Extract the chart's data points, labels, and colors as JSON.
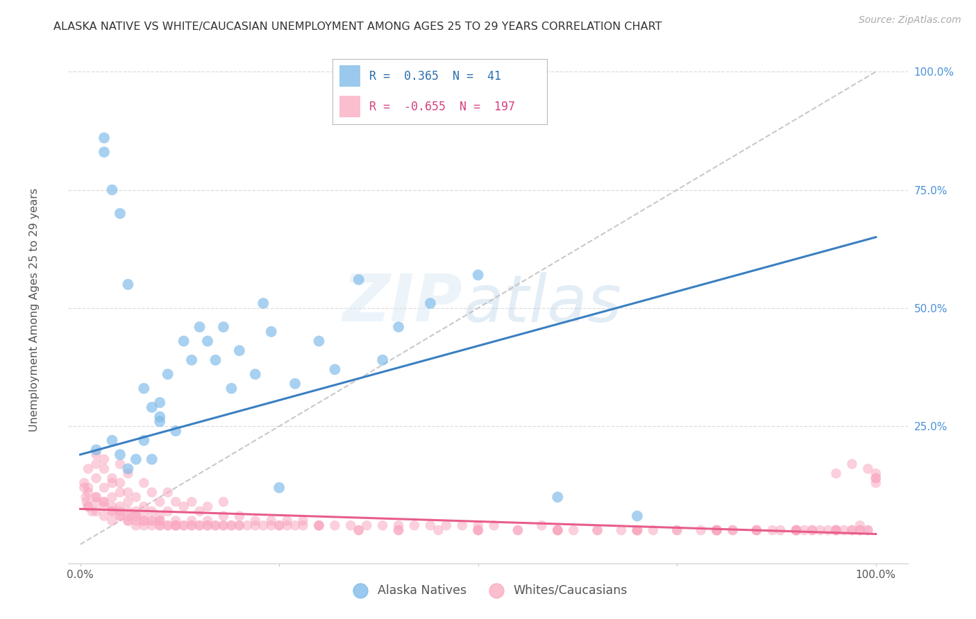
{
  "title": "ALASKA NATIVE VS WHITE/CAUCASIAN UNEMPLOYMENT AMONG AGES 25 TO 29 YEARS CORRELATION CHART",
  "source": "Source: ZipAtlas.com",
  "ylabel": "Unemployment Among Ages 25 to 29 years",
  "xlim": [
    0,
    1
  ],
  "ylim": [
    0,
    1
  ],
  "xticklabels": [
    "0.0%",
    "",
    "",
    "",
    "100.0%"
  ],
  "yticklabels": [
    "",
    "25.0%",
    "50.0%",
    "75.0%",
    "100.0%"
  ],
  "legend_r_blue": "0.365",
  "legend_n_blue": "41",
  "legend_r_pink": "-0.655",
  "legend_n_pink": "197",
  "blue_color": "#7ab8e8",
  "pink_color": "#f9a8c0",
  "blue_line_color": "#3a7fc1",
  "pink_line_color": "#e85c8a",
  "grid_color": "#dddddd",
  "watermark_zip": "ZIP",
  "watermark_atlas": "atlas",
  "alaska_x": [
    0.02,
    0.03,
    0.03,
    0.04,
    0.05,
    0.06,
    0.07,
    0.08,
    0.09,
    0.1,
    0.1,
    0.11,
    0.12,
    0.13,
    0.14,
    0.15,
    0.16,
    0.17,
    0.18,
    0.19,
    0.2,
    0.22,
    0.23,
    0.24,
    0.25,
    0.27,
    0.3,
    0.32,
    0.35,
    0.38,
    0.4,
    0.44,
    0.5,
    0.6,
    0.7,
    0.04,
    0.05,
    0.06,
    0.08,
    0.09,
    0.1
  ],
  "alaska_y": [
    0.2,
    0.86,
    0.83,
    0.75,
    0.7,
    0.55,
    0.18,
    0.33,
    0.29,
    0.3,
    0.27,
    0.36,
    0.24,
    0.43,
    0.39,
    0.46,
    0.43,
    0.39,
    0.46,
    0.33,
    0.41,
    0.36,
    0.51,
    0.45,
    0.12,
    0.34,
    0.43,
    0.37,
    0.56,
    0.39,
    0.46,
    0.51,
    0.57,
    0.1,
    0.06,
    0.22,
    0.19,
    0.16,
    0.22,
    0.18,
    0.26
  ],
  "whites_x": [
    0.005,
    0.007,
    0.01,
    0.01,
    0.01,
    0.02,
    0.02,
    0.02,
    0.02,
    0.03,
    0.03,
    0.03,
    0.03,
    0.04,
    0.04,
    0.04,
    0.04,
    0.05,
    0.05,
    0.05,
    0.05,
    0.06,
    0.06,
    0.06,
    0.06,
    0.07,
    0.07,
    0.07,
    0.08,
    0.08,
    0.08,
    0.09,
    0.09,
    0.1,
    0.1,
    0.1,
    0.11,
    0.11,
    0.12,
    0.12,
    0.13,
    0.13,
    0.14,
    0.14,
    0.15,
    0.15,
    0.16,
    0.16,
    0.17,
    0.18,
    0.18,
    0.19,
    0.2,
    0.21,
    0.22,
    0.23,
    0.24,
    0.25,
    0.26,
    0.27,
    0.28,
    0.3,
    0.32,
    0.34,
    0.36,
    0.38,
    0.4,
    0.42,
    0.44,
    0.46,
    0.48,
    0.5,
    0.52,
    0.55,
    0.58,
    0.6,
    0.62,
    0.65,
    0.68,
    0.7,
    0.72,
    0.75,
    0.78,
    0.8,
    0.82,
    0.85,
    0.87,
    0.9,
    0.92,
    0.95,
    0.97,
    0.98,
    0.99,
    1.0,
    0.02,
    0.03,
    0.04,
    0.05,
    0.06,
    0.07,
    0.08,
    0.09,
    0.1,
    0.11,
    0.12,
    0.005,
    0.008,
    0.01,
    0.015,
    0.02,
    0.03,
    0.04,
    0.05,
    0.06,
    0.07,
    0.08,
    0.09,
    0.1,
    0.11,
    0.12,
    0.13,
    0.14,
    0.15,
    0.16,
    0.17,
    0.18,
    0.19,
    0.2,
    0.22,
    0.24,
    0.26,
    0.28,
    0.3,
    0.35,
    0.4,
    0.45,
    0.5,
    0.55,
    0.6,
    0.65,
    0.7,
    0.75,
    0.8,
    0.85,
    0.9,
    0.95,
    1.0,
    0.01,
    0.02,
    0.03,
    0.04,
    0.05,
    0.06,
    0.07,
    0.08,
    0.09,
    0.1,
    0.12,
    0.14,
    0.16,
    0.18,
    0.2,
    0.25,
    0.3,
    0.35,
    0.4,
    0.5,
    0.6,
    0.7,
    0.8,
    0.9,
    0.95,
    0.98,
    0.99,
    1.0,
    0.5,
    0.6,
    0.7,
    0.8,
    0.9,
    0.95,
    0.97,
    0.99,
    1.0,
    0.98,
    0.97,
    0.96,
    0.95,
    0.94,
    0.93,
    0.92,
    0.91,
    0.9,
    0.88,
    0.85,
    0.82,
    0.8
  ],
  "whites_y": [
    0.13,
    0.1,
    0.16,
    0.12,
    0.08,
    0.14,
    0.1,
    0.07,
    0.17,
    0.12,
    0.09,
    0.06,
    0.18,
    0.1,
    0.07,
    0.14,
    0.05,
    0.08,
    0.13,
    0.06,
    0.17,
    0.07,
    0.11,
    0.05,
    0.15,
    0.06,
    0.1,
    0.04,
    0.08,
    0.13,
    0.05,
    0.07,
    0.11,
    0.06,
    0.09,
    0.04,
    0.07,
    0.11,
    0.05,
    0.09,
    0.04,
    0.08,
    0.05,
    0.09,
    0.04,
    0.07,
    0.05,
    0.08,
    0.04,
    0.06,
    0.09,
    0.04,
    0.06,
    0.04,
    0.05,
    0.04,
    0.05,
    0.04,
    0.05,
    0.04,
    0.05,
    0.04,
    0.04,
    0.04,
    0.04,
    0.04,
    0.04,
    0.04,
    0.04,
    0.04,
    0.04,
    0.03,
    0.04,
    0.03,
    0.04,
    0.03,
    0.03,
    0.03,
    0.03,
    0.03,
    0.03,
    0.03,
    0.03,
    0.03,
    0.03,
    0.03,
    0.03,
    0.03,
    0.03,
    0.03,
    0.03,
    0.03,
    0.03,
    0.15,
    0.19,
    0.16,
    0.13,
    0.11,
    0.09,
    0.07,
    0.06,
    0.05,
    0.05,
    0.04,
    0.04,
    0.12,
    0.09,
    0.08,
    0.07,
    0.1,
    0.09,
    0.08,
    0.07,
    0.06,
    0.06,
    0.05,
    0.05,
    0.05,
    0.04,
    0.04,
    0.04,
    0.04,
    0.04,
    0.04,
    0.04,
    0.04,
    0.04,
    0.04,
    0.04,
    0.04,
    0.04,
    0.04,
    0.04,
    0.03,
    0.03,
    0.03,
    0.03,
    0.03,
    0.03,
    0.03,
    0.03,
    0.03,
    0.03,
    0.03,
    0.03,
    0.03,
    0.14,
    0.11,
    0.09,
    0.08,
    0.07,
    0.06,
    0.05,
    0.05,
    0.04,
    0.04,
    0.04,
    0.04,
    0.04,
    0.04,
    0.04,
    0.04,
    0.04,
    0.04,
    0.03,
    0.03,
    0.03,
    0.03,
    0.03,
    0.03,
    0.03,
    0.03,
    0.03,
    0.03,
    0.13,
    0.04,
    0.03,
    0.03,
    0.03,
    0.03,
    0.15,
    0.17,
    0.16,
    0.14,
    0.04,
    0.03,
    0.03,
    0.03,
    0.03,
    0.03,
    0.03,
    0.03,
    0.03,
    0.03,
    0.03,
    0.03,
    0.03
  ]
}
